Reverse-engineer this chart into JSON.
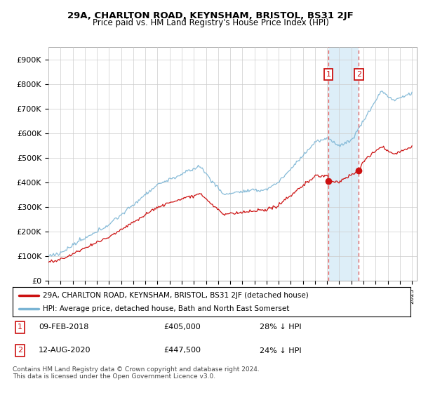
{
  "title_line1": "29A, CHARLTON ROAD, KEYNSHAM, BRISTOL, BS31 2JF",
  "title_line2": "Price paid vs. HM Land Registry's House Price Index (HPI)",
  "ylim": [
    0,
    950000
  ],
  "yticks": [
    0,
    100000,
    200000,
    300000,
    400000,
    500000,
    600000,
    700000,
    800000,
    900000
  ],
  "ytick_labels": [
    "£0",
    "£100K",
    "£200K",
    "£300K",
    "£400K",
    "£500K",
    "£600K",
    "£700K",
    "£800K",
    "£900K"
  ],
  "hpi_color": "#7ab4d4",
  "price_color": "#cc1111",
  "marker_color": "#cc1111",
  "vspan_color": "#ddeef8",
  "vline_color": "#dd5555",
  "purchase1_year": 2018.1,
  "purchase1_price": 405000,
  "purchase2_year": 2020.62,
  "purchase2_price": 447500,
  "legend_label1": "29A, CHARLTON ROAD, KEYNSHAM, BRISTOL, BS31 2JF (detached house)",
  "legend_label2": "HPI: Average price, detached house, Bath and North East Somerset",
  "ann1_date": "09-FEB-2018",
  "ann1_price": "£405,000",
  "ann1_pct": "28% ↓ HPI",
  "ann2_date": "12-AUG-2020",
  "ann2_price": "£447,500",
  "ann2_pct": "24% ↓ HPI",
  "footer": "Contains HM Land Registry data © Crown copyright and database right 2024.\nThis data is licensed under the Open Government Licence v3.0.",
  "background_color": "#ffffff",
  "grid_color": "#cccccc",
  "xstart": 1995,
  "xend": 2025
}
